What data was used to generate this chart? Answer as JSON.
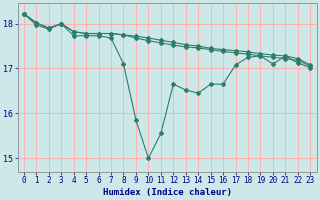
{
  "xlabel": "Humidex (Indice chaleur)",
  "ylabel": "",
  "bg_color": "#cce8e8",
  "grid_color": "#ffb0b0",
  "line_color": "#2d7d6e",
  "xlim": [
    -0.5,
    23.5
  ],
  "ylim": [
    14.7,
    18.45
  ],
  "yticks": [
    15,
    16,
    17,
    18
  ],
  "xticks": [
    0,
    1,
    2,
    3,
    4,
    5,
    6,
    7,
    8,
    9,
    10,
    11,
    12,
    13,
    14,
    15,
    16,
    17,
    18,
    19,
    20,
    21,
    22,
    23
  ],
  "series1": [
    18.22,
    18.02,
    17.9,
    18.0,
    17.82,
    17.78,
    17.78,
    17.78,
    17.75,
    17.72,
    17.68,
    17.63,
    17.58,
    17.53,
    17.5,
    17.45,
    17.42,
    17.4,
    17.37,
    17.33,
    17.3,
    17.28,
    17.22,
    17.08
  ],
  "series2": [
    18.22,
    18.02,
    17.9,
    18.0,
    17.82,
    17.78,
    17.78,
    17.78,
    17.75,
    17.68,
    17.62,
    17.57,
    17.52,
    17.48,
    17.46,
    17.42,
    17.38,
    17.35,
    17.32,
    17.28,
    17.25,
    17.22,
    17.18,
    17.05
  ],
  "series3": [
    18.22,
    17.97,
    17.88,
    18.0,
    17.73,
    17.73,
    17.73,
    17.68,
    17.1,
    15.85,
    15.0,
    15.55,
    16.65,
    16.52,
    16.45,
    16.65,
    16.65,
    17.08,
    17.25,
    17.28,
    17.1,
    17.28,
    17.12,
    17.02
  ]
}
